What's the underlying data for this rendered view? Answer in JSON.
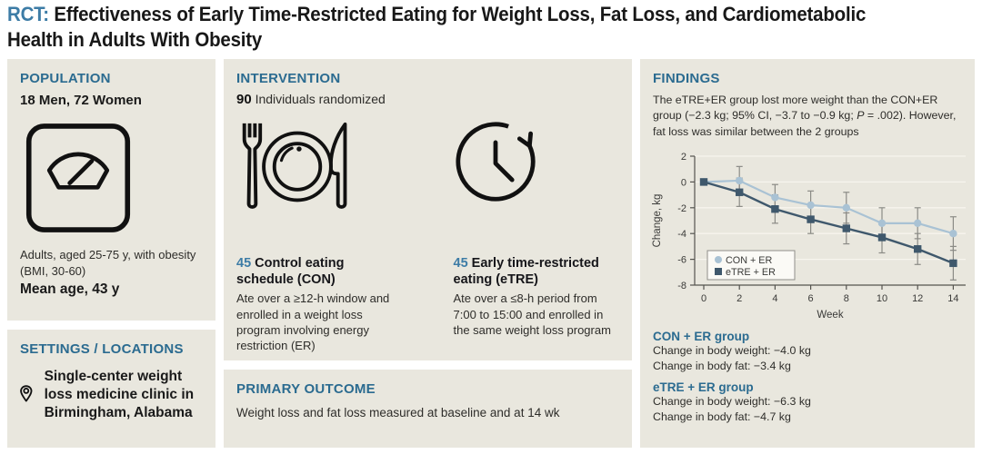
{
  "title": {
    "tag": "RCT:",
    "line1": "Effectiveness of Early Time-Restricted Eating for Weight Loss, Fat Loss, and Cardiometabolic",
    "line2": "Health in Adults With Obesity"
  },
  "population": {
    "header": "POPULATION",
    "sex_counts": "18 Men, 72 Women",
    "icon": "weight-scale-icon",
    "description": "Adults, aged 25-75 y, with obesity (BMI, 30-60)",
    "mean_age": "Mean age, 43 y"
  },
  "settings": {
    "header": "SETTINGS / LOCATIONS",
    "icon": "location-pin-icon",
    "description": "Single-center weight loss medicine clinic in Birmingham, Alabama"
  },
  "intervention": {
    "header": "INTERVENTION",
    "randomized_count": "90",
    "randomized_label": " Individuals randomized",
    "icons": [
      "fork-plate-knife-icon",
      "clock-restricted-window-icon"
    ],
    "arms": [
      {
        "count": "45",
        "name": "Control eating schedule (CON)",
        "description": "Ate over a ≥12-h window and enrolled in a weight loss program involving energy restriction (ER)"
      },
      {
        "count": "45",
        "name": "Early time-restricted eating (eTRE)",
        "description": "Ate over a ≤8-h period from 7:00 to 15:00 and enrolled in the same weight loss program"
      }
    ]
  },
  "primary_outcome": {
    "header": "PRIMARY OUTCOME",
    "description": "Weight loss and fat loss measured at baseline and at 14 wk"
  },
  "findings": {
    "header": "FINDINGS",
    "summary_before_p": "The eTRE+ER group lost more weight than the CON+ER group (−2.3 kg; 95% CI, −3.7 to −0.9 kg; ",
    "p_label": "P",
    "summary_after_p": " = .002). However, fat loss was similar between the 2 groups",
    "groups": [
      {
        "name": "CON + ER group",
        "weight_change": "Change in body weight: −4.0 kg",
        "fat_change": "Change in body fat: −3.4 kg"
      },
      {
        "name": "eTRE + ER group",
        "weight_change": "Change in body weight: −6.3 kg",
        "fat_change": "Change in body fat: −4.7 kg"
      }
    ]
  },
  "chart_data": {
    "type": "line",
    "x": [
      0,
      2,
      4,
      6,
      8,
      10,
      12,
      14
    ],
    "xlabel": "Week",
    "ylabel": "Change, kg",
    "ylim": [
      -8,
      2
    ],
    "yticks": [
      2,
      0,
      -2,
      -4,
      -6,
      -8
    ],
    "grid": true,
    "legend_position": "bottom-left",
    "error_bar_color": "#8b8b86",
    "series": [
      {
        "name": "CON + ER",
        "marker": "circle",
        "color": "#a9c2d4",
        "values": [
          0,
          0.1,
          -1.2,
          -1.8,
          -2.0,
          -3.2,
          -3.2,
          -4.0
        ],
        "error": [
          0,
          1.1,
          1.0,
          1.1,
          1.2,
          1.2,
          1.2,
          1.3
        ]
      },
      {
        "name": "eTRE + ER",
        "marker": "square",
        "color": "#3f586c",
        "values": [
          0,
          -0.8,
          -2.1,
          -2.9,
          -3.6,
          -4.3,
          -5.2,
          -6.3
        ],
        "error": [
          0,
          1.1,
          1.1,
          1.1,
          1.2,
          1.2,
          1.2,
          1.3
        ]
      }
    ]
  },
  "colors": {
    "accent": "#2b6b90",
    "accent_light": "#3d7ca6",
    "panel_background": "#e9e7de"
  }
}
